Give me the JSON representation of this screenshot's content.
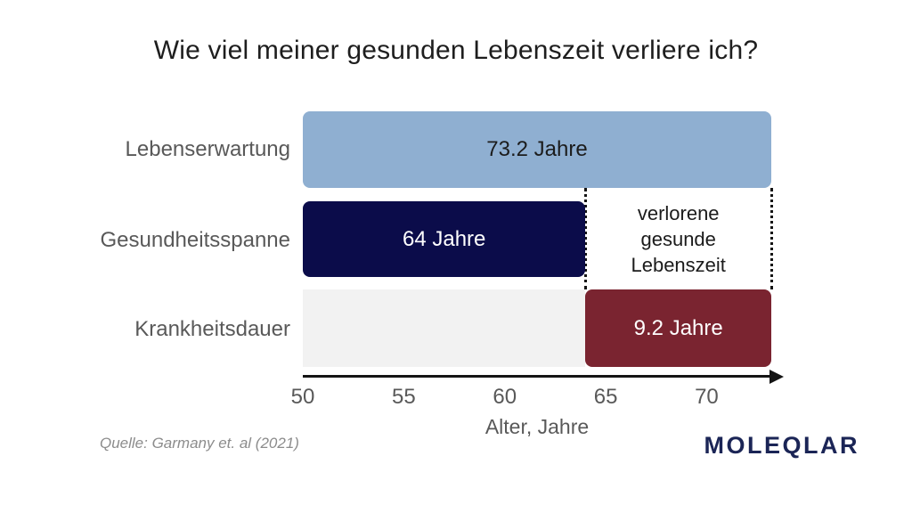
{
  "chart_data": {
    "type": "bar",
    "orientation": "horizontal",
    "title": "Wie viel meiner gesunden Lebenszeit verliere ich?",
    "xlabel": "Alter, Jahre",
    "x_range": [
      50,
      73.2
    ],
    "x_ticks": [
      50,
      55,
      60,
      65,
      70
    ],
    "grid": false,
    "legend": false,
    "categories": [
      "Lebenserwartung",
      "Gesundheitsspanne",
      "Krankheitsdauer"
    ],
    "bars": [
      {
        "name": "Lebenserwartung",
        "start": 50,
        "end": 73.2,
        "value": 23.2,
        "value_label": "73.2 Jahre",
        "color": "#8FAFD1",
        "text_color": "#1c1c1c"
      },
      {
        "name": "Gesundheitsspanne",
        "start": 50,
        "end": 64,
        "value": 14,
        "value_label": "64 Jahre",
        "color": "#0B0C4A",
        "text_color": "#ffffff"
      },
      {
        "name": "Krankheitsdauer",
        "start": 64,
        "end": 73.2,
        "value": 9.2,
        "value_label": "9.2 Jahre",
        "color": "#7A2430",
        "text_color": "#ffffff",
        "track": {
          "start": 50,
          "end": 64,
          "color": "#F2F2F2"
        }
      }
    ],
    "annotation": {
      "lines": [
        "verlorene",
        "gesunde",
        "Lebenszeit"
      ],
      "from_value": 64,
      "to_value": 73.2
    },
    "axis_color": "#141414",
    "label_color": "#595959"
  },
  "source_note": "Quelle: Garmany et. al (2021)",
  "logo": {
    "text": "MOLEQLAR",
    "color": "#1b2556"
  }
}
